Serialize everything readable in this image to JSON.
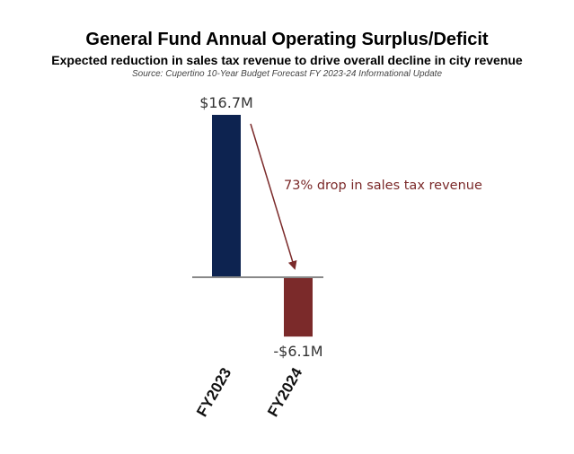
{
  "chart_data": {
    "type": "bar",
    "title": "General Fund Annual Operating Surplus/Deficit",
    "subtitle": "Expected reduction in sales tax revenue to drive overall decline in city revenue",
    "source": "Source: Cupertino 10-Year Budget Forecast FY 2023-24 Informational Update",
    "categories": [
      "FY2023",
      "FY2024"
    ],
    "values": [
      16.7,
      -6.1
    ],
    "value_labels": [
      "$16.7M",
      "-$6.1M"
    ],
    "bar_colors": [
      "#0d2350",
      "#7b2a2a"
    ],
    "annotation": "73% drop in sales tax revenue",
    "annotation_color": "#7b2a2a",
    "axis_color": "#888888",
    "ylim": [
      -6.1,
      16.7
    ]
  }
}
